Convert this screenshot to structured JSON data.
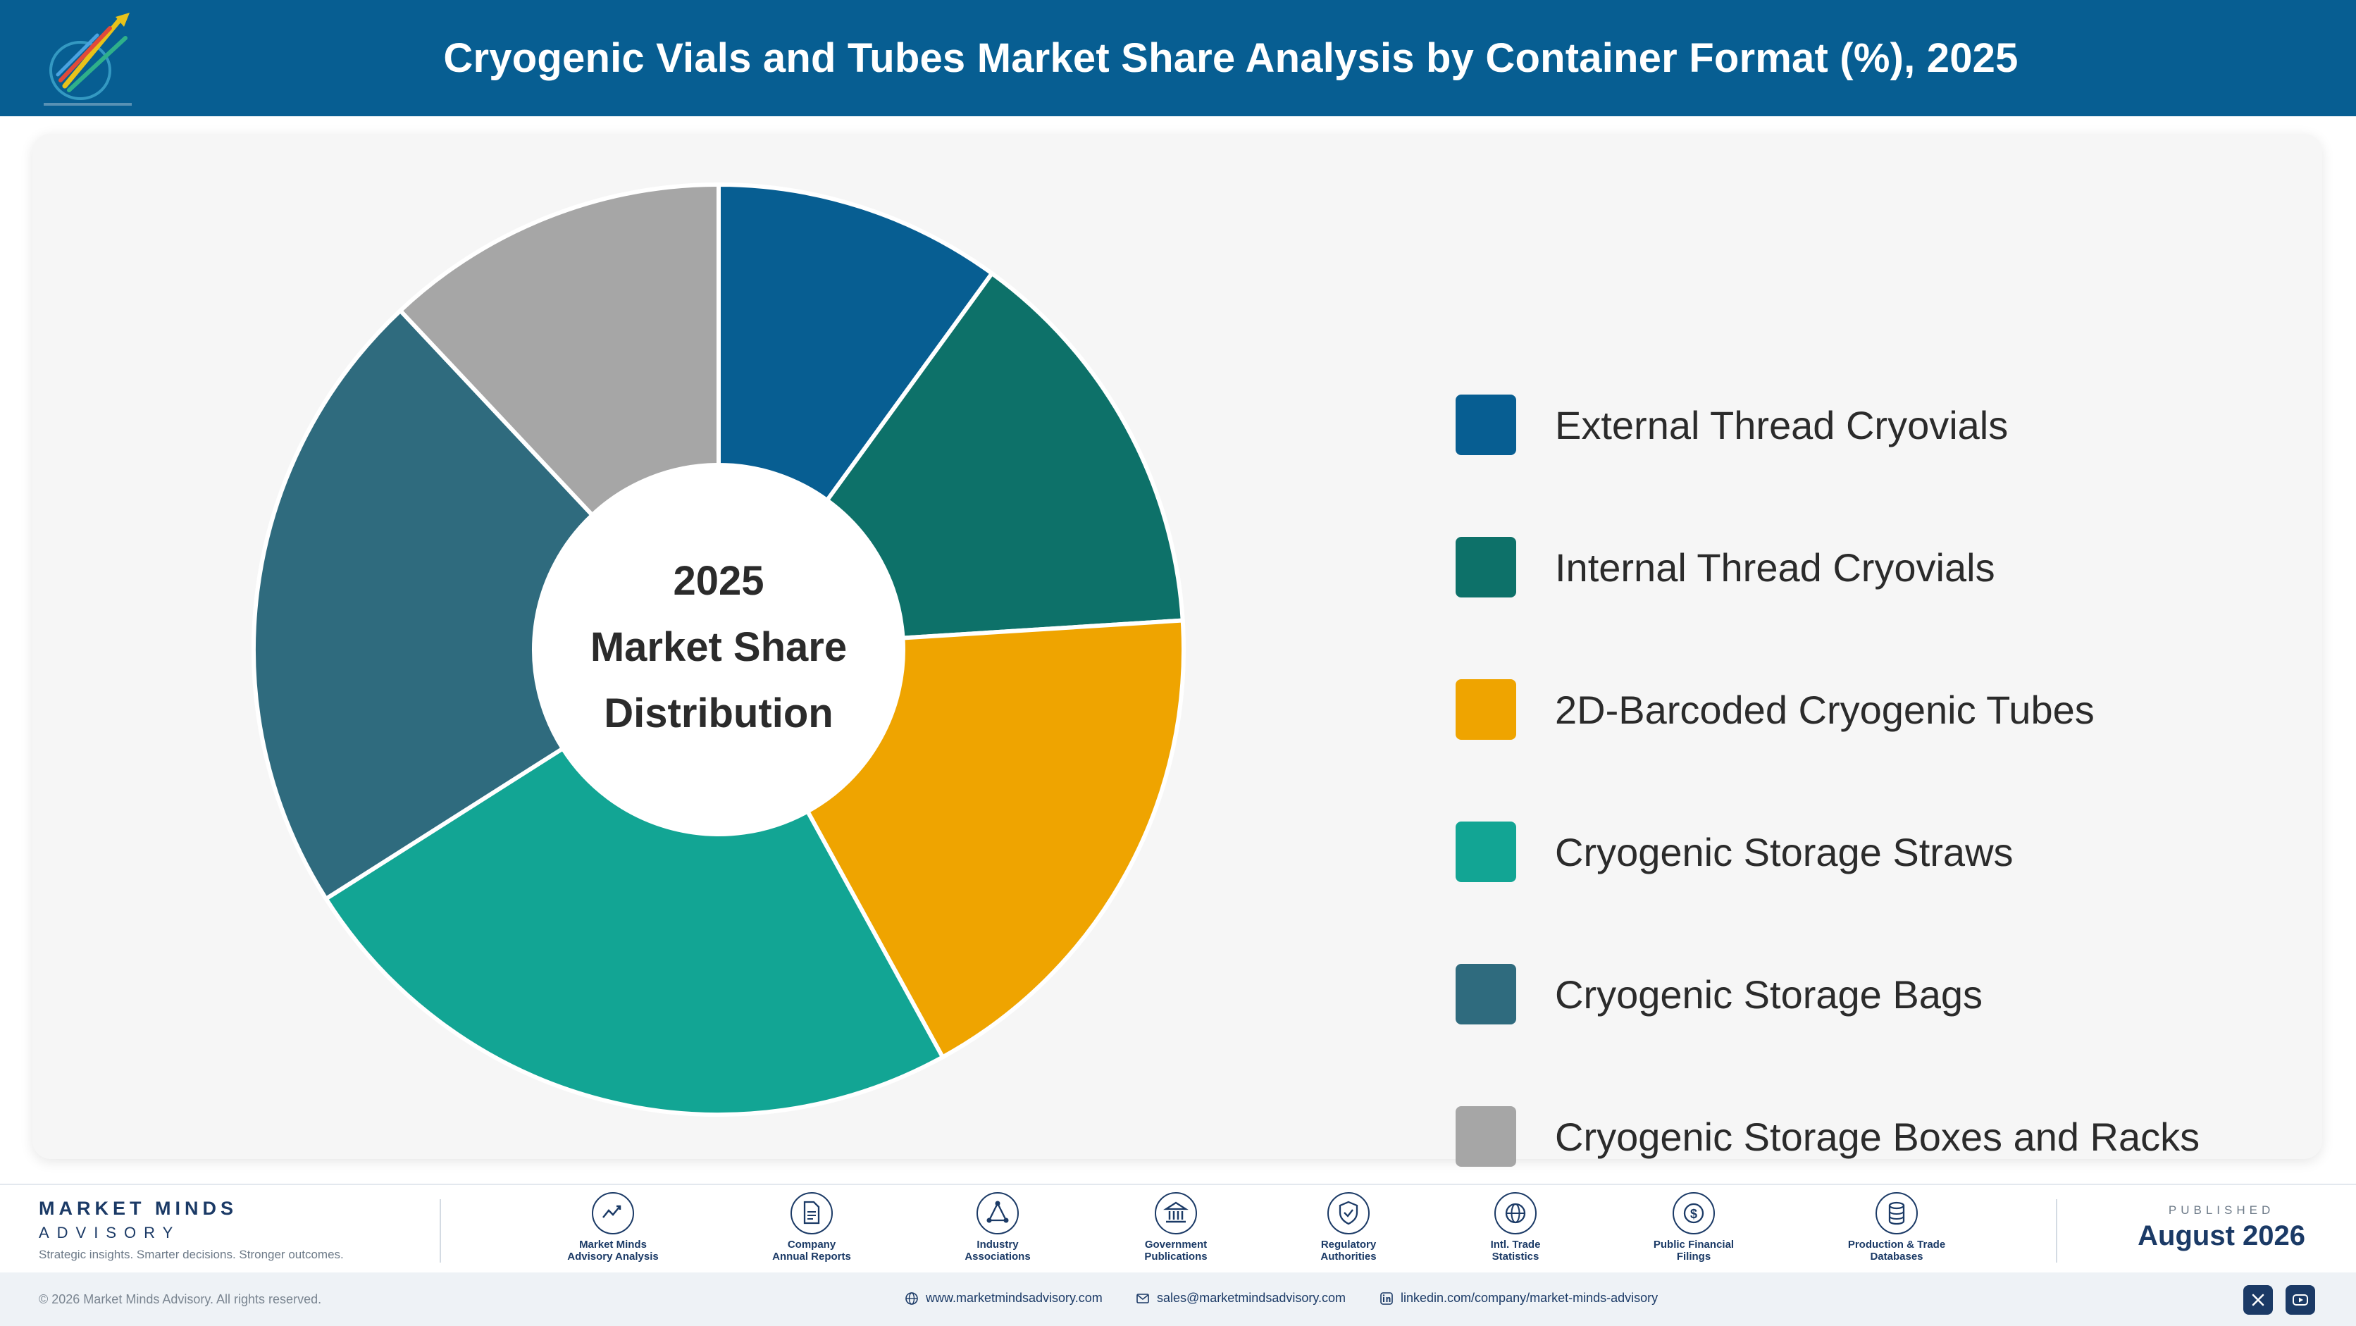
{
  "header": {
    "title": "Cryogenic Vials and Tubes Market Share Analysis by Container Format (%), 2025",
    "logo_icon": "pen-nib-logo-icon"
  },
  "chart_data": {
    "type": "pie",
    "variant": "donut",
    "title": "Cryogenic Vials and Tubes Market Share Analysis by Container Format (%), 2025",
    "center_label": [
      "2025",
      "Market Share",
      "Distribution"
    ],
    "categories": [
      "External Thread Cryovials",
      "Internal Thread Cryovials",
      "2D-Barcoded Cryogenic Tubes",
      "Cryogenic Storage Straws",
      "Cryogenic Storage Bags",
      "Cryogenic Storage Boxes and Racks"
    ],
    "values": [
      10,
      14,
      18,
      24,
      22,
      12
    ],
    "colors": [
      "#075e92",
      "#0d7169",
      "#efa400",
      "#12a594",
      "#2f6b7e",
      "#a6a6a6"
    ],
    "legend_position": "right"
  },
  "footer": {
    "brand_name": "MARKET MINDS",
    "brand_sub": "ADVISORY",
    "tagline": "Strategic insights. Smarter decisions. Stronger outcomes.",
    "sources": [
      {
        "line1": "Market Minds",
        "line2": "Advisory Analysis",
        "icon": "trend-line-icon"
      },
      {
        "line1": "Company",
        "line2": "Annual Reports",
        "icon": "document-icon"
      },
      {
        "line1": "Industry",
        "line2": "Associations",
        "icon": "network-icon"
      },
      {
        "line1": "Government",
        "line2": "Publications",
        "icon": "bank-icon"
      },
      {
        "line1": "Regulatory",
        "line2": "Authorities",
        "icon": "shield-check-icon"
      },
      {
        "line1": "Intl. Trade",
        "line2": "Statistics",
        "icon": "globe-icon"
      },
      {
        "line1": "Public Financial",
        "line2": "Filings",
        "icon": "dollar-coin-icon"
      },
      {
        "line1": "Production & Trade",
        "line2": "Databases",
        "icon": "database-icon"
      }
    ],
    "published_label": "PUBLISHED",
    "published_date": "August 2026",
    "copyright": "© 2026 Market Minds Advisory. All rights reserved.",
    "website": "www.marketmindsadvisory.com",
    "email": "sales@marketmindsadvisory.com",
    "linkedin": "linkedin.com/company/market-minds-advisory",
    "social": [
      "x-icon",
      "youtube-icon"
    ]
  }
}
